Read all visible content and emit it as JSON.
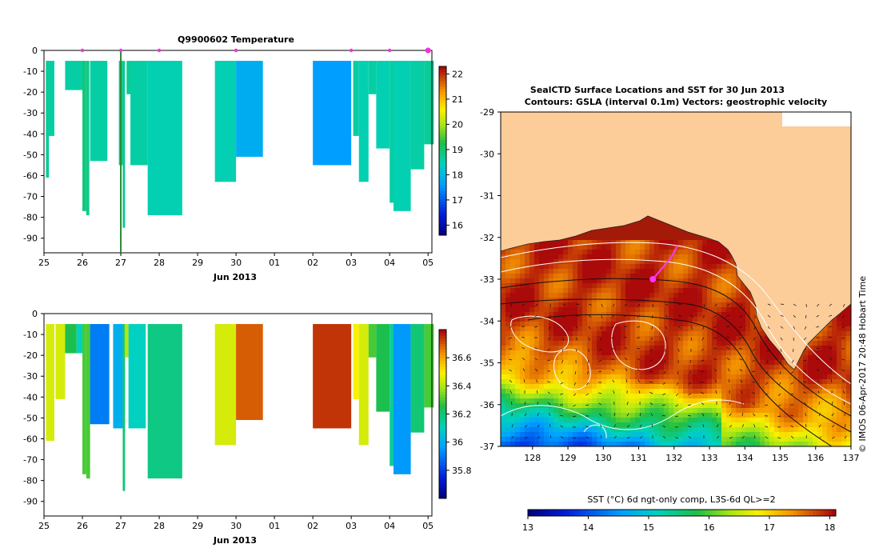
{
  "chart_data": [
    {
      "id": "temperature_section",
      "type": "heatmap",
      "title": "Q9900602  Temperature",
      "xlabel": "Jun 2013",
      "xticks": [
        "25",
        "26",
        "27",
        "28",
        "29",
        "30",
        "01",
        "02",
        "03",
        "04",
        "05"
      ],
      "xlim": [
        25,
        35.1
      ],
      "ylim": [
        -97,
        0
      ],
      "yticks": [
        0,
        -10,
        -20,
        -30,
        -40,
        -50,
        -60,
        -70,
        -80,
        -90
      ],
      "colorbar": {
        "min": 15.6,
        "max": 22.3,
        "ticks": [
          16,
          17,
          18,
          19,
          20,
          21,
          22
        ]
      },
      "profile_markers_day": [
        26,
        27,
        28,
        30,
        33,
        34,
        35
      ],
      "profiles": [
        {
          "day": 25.05,
          "w": 0.22,
          "v": 18.6,
          "depth": 41
        },
        {
          "day": 25.05,
          "w": 0.08,
          "v": 18.7,
          "depth": 61
        },
        {
          "day": 25.55,
          "w": 0.5,
          "v": 18.6,
          "depth": 19
        },
        {
          "day": 26.0,
          "w": 0.1,
          "v": 18.9,
          "depth": 77
        },
        {
          "day": 26.1,
          "w": 0.08,
          "v": 18.8,
          "depth": 79
        },
        {
          "day": 26.2,
          "w": 0.45,
          "v": 18.6,
          "depth": 53
        },
        {
          "day": 26.95,
          "w": 0.1,
          "v": 18.7,
          "depth": 55
        },
        {
          "day": 27.05,
          "w": 0.06,
          "v": 18.8,
          "depth": 85
        },
        {
          "day": 27.15,
          "w": 0.12,
          "v": 18.7,
          "depth": 21
        },
        {
          "day": 27.25,
          "w": 0.45,
          "v": 18.6,
          "depth": 55
        },
        {
          "day": 27.7,
          "w": 0.9,
          "v": 18.5,
          "depth": 79
        },
        {
          "day": 29.45,
          "w": 0.55,
          "v": 18.5,
          "depth": 63
        },
        {
          "day": 30.0,
          "w": 0.7,
          "v": 17.8,
          "depth": 51
        },
        {
          "day": 32.0,
          "w": 1.0,
          "v": 17.6,
          "depth": 55
        },
        {
          "day": 33.05,
          "w": 0.15,
          "v": 18.6,
          "depth": 41
        },
        {
          "day": 33.2,
          "w": 0.25,
          "v": 18.5,
          "depth": 63
        },
        {
          "day": 33.45,
          "w": 0.2,
          "v": 18.6,
          "depth": 21
        },
        {
          "day": 33.65,
          "w": 0.35,
          "v": 18.5,
          "depth": 47
        },
        {
          "day": 34.0,
          "w": 0.3,
          "v": 18.6,
          "depth": 73
        },
        {
          "day": 34.1,
          "w": 0.45,
          "v": 18.5,
          "depth": 77
        },
        {
          "day": 34.55,
          "w": 0.35,
          "v": 18.6,
          "depth": 57
        },
        {
          "day": 34.9,
          "w": 0.25,
          "v": 18.7,
          "depth": 45
        }
      ]
    },
    {
      "id": "salinity_section",
      "type": "heatmap",
      "title": "",
      "xlabel": "Jun 2013",
      "xticks": [
        "25",
        "26",
        "27",
        "28",
        "29",
        "30",
        "01",
        "02",
        "03",
        "04",
        "05"
      ],
      "xlim": [
        25,
        35.1
      ],
      "ylim": [
        -97,
        0
      ],
      "yticks": [
        0,
        -10,
        -20,
        -30,
        -40,
        -50,
        -60,
        -70,
        -80,
        -90
      ],
      "colorbar": {
        "min": 35.6,
        "max": 36.8,
        "ticks": [
          35.8,
          36,
          36.2,
          36.4,
          36.6
        ]
      },
      "profiles": [
        {
          "day": 25.05,
          "w": 0.22,
          "v": 36.45,
          "depth": 61
        },
        {
          "day": 25.3,
          "w": 0.25,
          "v": 36.45,
          "depth": 41
        },
        {
          "day": 25.55,
          "w": 0.3,
          "v": 36.25,
          "depth": 19
        },
        {
          "day": 25.85,
          "w": 0.15,
          "v": 36.1,
          "depth": 19
        },
        {
          "day": 26.0,
          "w": 0.1,
          "v": 36.3,
          "depth": 77
        },
        {
          "day": 26.1,
          "w": 0.1,
          "v": 36.3,
          "depth": 79
        },
        {
          "day": 26.2,
          "w": 0.5,
          "v": 35.9,
          "depth": 53
        },
        {
          "day": 26.8,
          "w": 0.25,
          "v": 36.0,
          "depth": 55
        },
        {
          "day": 27.05,
          "w": 0.06,
          "v": 36.2,
          "depth": 85
        },
        {
          "day": 27.1,
          "w": 0.1,
          "v": 36.4,
          "depth": 21
        },
        {
          "day": 27.2,
          "w": 0.45,
          "v": 36.1,
          "depth": 55
        },
        {
          "day": 27.7,
          "w": 0.9,
          "v": 36.18,
          "depth": 79
        },
        {
          "day": 29.45,
          "w": 0.55,
          "v": 36.45,
          "depth": 63
        },
        {
          "day": 30.0,
          "w": 0.7,
          "v": 36.7,
          "depth": 51
        },
        {
          "day": 32.0,
          "w": 1.0,
          "v": 36.75,
          "depth": 55
        },
        {
          "day": 33.05,
          "w": 0.15,
          "v": 36.5,
          "depth": 41
        },
        {
          "day": 33.2,
          "w": 0.25,
          "v": 36.45,
          "depth": 63
        },
        {
          "day": 33.45,
          "w": 0.2,
          "v": 36.3,
          "depth": 21
        },
        {
          "day": 33.65,
          "w": 0.35,
          "v": 36.25,
          "depth": 47
        },
        {
          "day": 34.0,
          "w": 0.3,
          "v": 36.15,
          "depth": 73
        },
        {
          "day": 34.1,
          "w": 0.45,
          "v": 35.95,
          "depth": 77
        },
        {
          "day": 34.55,
          "w": 0.35,
          "v": 36.2,
          "depth": 57
        },
        {
          "day": 34.9,
          "w": 0.25,
          "v": 36.3,
          "depth": 45
        }
      ]
    },
    {
      "id": "sst_map",
      "type": "heatmap",
      "title_line1": "SealCTD Surface Locations and SST for 30 Jun 2013",
      "title_line2": "Contours: GSLA (interval 0.1m) Vectors: geostrophic velocity",
      "xlim": [
        127.1,
        137.0
      ],
      "ylim": [
        -37,
        -29
      ],
      "xticks": [
        "128",
        "129",
        "130",
        "131",
        "132",
        "133",
        "134",
        "135",
        "136",
        "137"
      ],
      "yticks": [
        "-29",
        "-30",
        "-31",
        "-32",
        "-33",
        "-34",
        "-35",
        "-36",
        "-37"
      ],
      "colorbar": {
        "label": "SST (°C) 6d ngt-only comp, L3S-6d QL>=2",
        "min": 13,
        "max": 18.1,
        "ticks": [
          "13",
          "14",
          "15",
          "16",
          "17",
          "18"
        ]
      },
      "side_label": "© IMOS 06-Apr-2017 20:48 Hobart Time",
      "seal_track": [
        [
          132.1,
          -32.2
        ],
        [
          131.9,
          -32.5
        ],
        [
          131.6,
          -32.8
        ],
        [
          131.4,
          -33.0
        ]
      ]
    }
  ]
}
